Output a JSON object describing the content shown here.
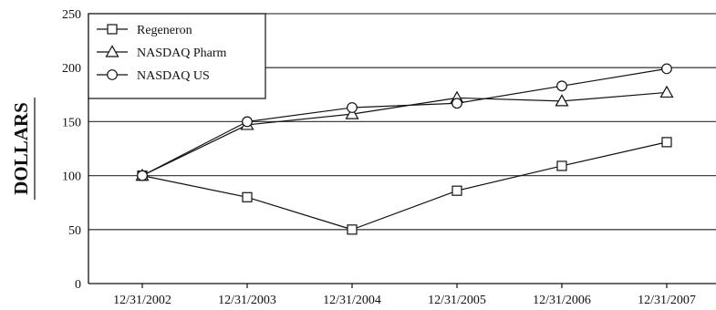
{
  "chart_data": {
    "type": "line",
    "title": "",
    "xlabel": "",
    "ylabel": "DOLLARS",
    "x": [
      "12/31/2002",
      "12/31/2003",
      "12/31/2004",
      "12/31/2005",
      "12/31/2006",
      "12/31/2007"
    ],
    "ylim": [
      0,
      250
    ],
    "yticks": [
      "0",
      "50",
      "100",
      "150",
      "200",
      "250"
    ],
    "grid": "horizontal",
    "legend_position": "top-left",
    "series": [
      {
        "name": "Regeneron",
        "marker": "square",
        "values": [
          100,
          80,
          50,
          86,
          109,
          131
        ]
      },
      {
        "name": "NASDAQ Pharm",
        "marker": "triangle",
        "values": [
          100,
          147,
          157,
          172,
          169,
          177
        ]
      },
      {
        "name": "NASDAQ US",
        "marker": "circle",
        "values": [
          100,
          150,
          163,
          167,
          183,
          199
        ]
      }
    ],
    "colors": {
      "line": "#111111",
      "grid": "#444444",
      "marker_fill": "#ffffff"
    }
  }
}
